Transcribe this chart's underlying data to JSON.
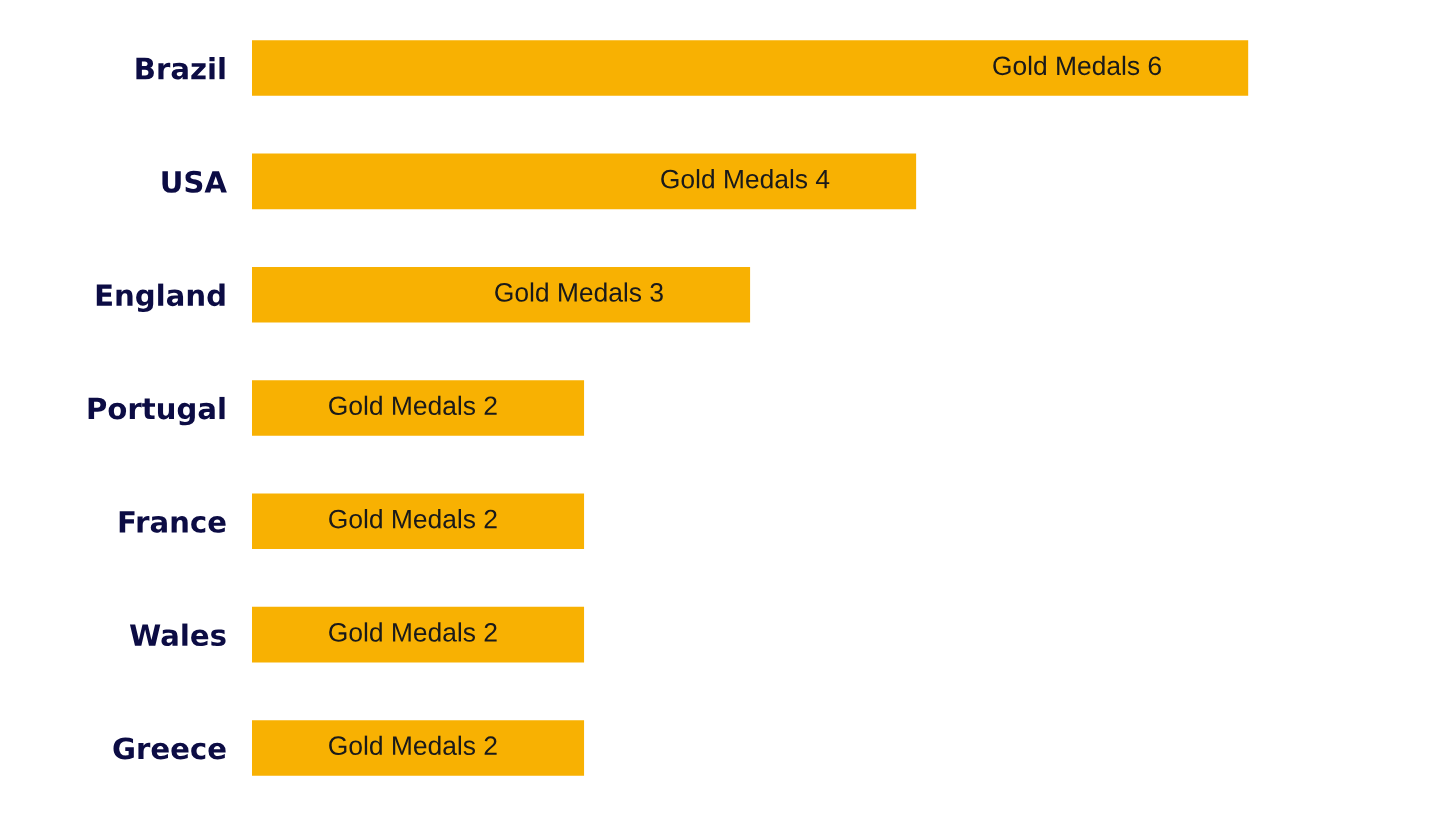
{
  "chart_data": {
    "type": "bar",
    "orientation": "horizontal",
    "categories": [
      "Brazil",
      "USA",
      "England",
      "Portugal",
      "France",
      "Wales",
      "Greece"
    ],
    "values": [
      6,
      4,
      3,
      2,
      2,
      2,
      2
    ],
    "color": "#f8b102",
    "value_labels": [
      "Gold Medals 6",
      "Gold Medals 4",
      "Gold Medals 3",
      "Gold Medals 2",
      "Gold Medals 2",
      "Gold Medals 2",
      "Gold Medals 2"
    ],
    "tick_labels": "y"
  }
}
